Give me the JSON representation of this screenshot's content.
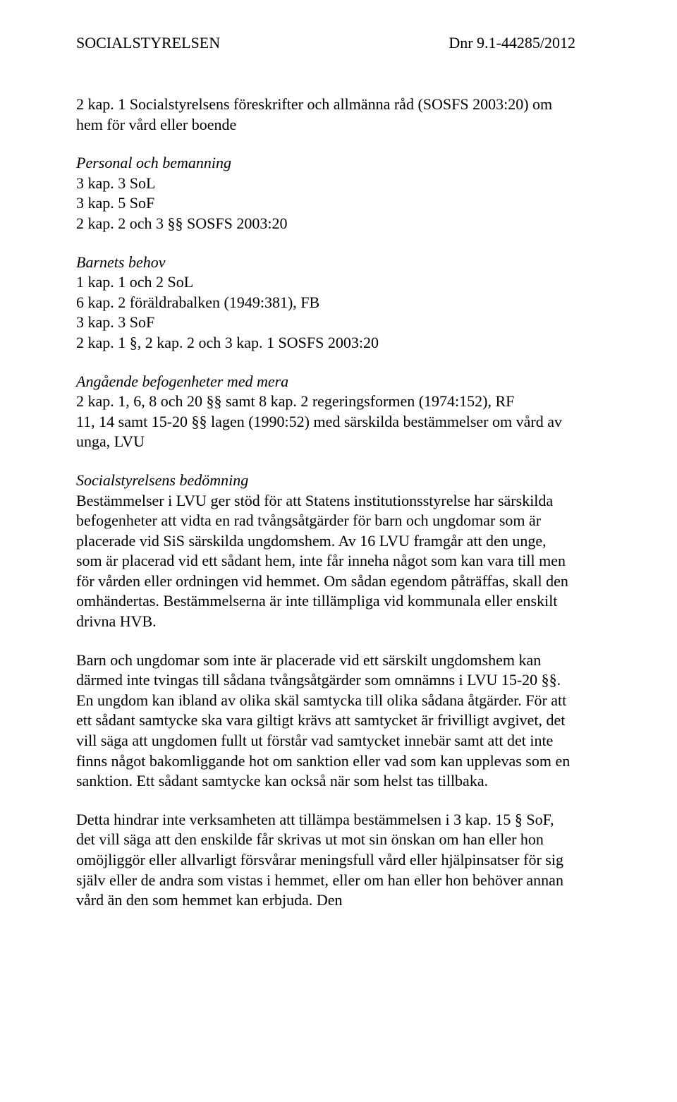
{
  "header": {
    "left": "SOCIALSTYRELSEN",
    "right": "Dnr 9.1-44285/2012"
  },
  "sections": [
    {
      "lines": [
        "2 kap. 1 Socialstyrelsens föreskrifter och allmänna råd (SOSFS 2003:20) om hem för vård eller boende"
      ]
    },
    {
      "heading": "Personal och bemanning",
      "lines": [
        "3 kap. 3 SoL",
        "3 kap. 5 SoF",
        "2 kap. 2 och 3 §§ SOSFS 2003:20"
      ]
    },
    {
      "heading": "Barnets behov",
      "lines": [
        "1 kap. 1 och 2 SoL",
        "6 kap. 2 föräldrabalken (1949:381), FB",
        "3 kap. 3 SoF",
        "2 kap. 1 §, 2 kap. 2 och 3 kap. 1 SOSFS 2003:20"
      ]
    },
    {
      "heading": "Angående befogenheter med mera",
      "lines": [
        "2 kap. 1, 6, 8 och 20 §§ samt 8 kap. 2 regeringsformen (1974:152), RF",
        "11, 14 samt 15-20 §§ lagen (1990:52) med särskilda bestämmelser om vård av unga, LVU"
      ]
    }
  ],
  "assessment": {
    "heading": "Socialstyrelsens bedömning",
    "paragraphs": [
      "Bestämmelser i LVU ger stöd för att Statens institutionsstyrelse har särskilda befogenheter att vidta en rad tvångsåtgärder för barn och ungdomar som är placerade vid SiS särskilda ungdomshem. Av 16 LVU framgår att den unge, som är placerad vid ett sådant hem, inte får inneha något som kan vara till men för vården eller ordningen vid hemmet. Om sådan egendom påträffas, skall den omhändertas. Bestämmelserna är inte tillämpliga vid kommunala eller enskilt drivna HVB.",
      "Barn och ungdomar som inte är placerade vid ett särskilt ungdomshem kan därmed inte tvingas till sådana tvångsåtgärder som omnämns i LVU 15-20 §§. En ungdom kan ibland av olika skäl samtycka till olika sådana åtgärder. För att ett sådant samtycke ska vara giltigt krävs att samtycket är frivilligt avgivet, det vill säga att ungdomen fullt ut förstår vad samtycket innebär samt att det inte finns något bakomliggande hot om sanktion eller vad som kan upplevas som en sanktion. Ett sådant samtycke kan också när som helst tas tillbaka.",
      "Detta hindrar inte verksamheten att tillämpa bestämmelsen i 3 kap. 15 § SoF, det vill säga att den enskilde får skrivas ut mot sin önskan om han eller hon omöjliggör eller allvarligt försvårar meningsfull vård eller hjälpinsatser för sig själv eller de andra som vistas i hemmet, eller om han eller hon behöver annan vård än den som hemmet kan erbjuda. Den"
    ]
  }
}
